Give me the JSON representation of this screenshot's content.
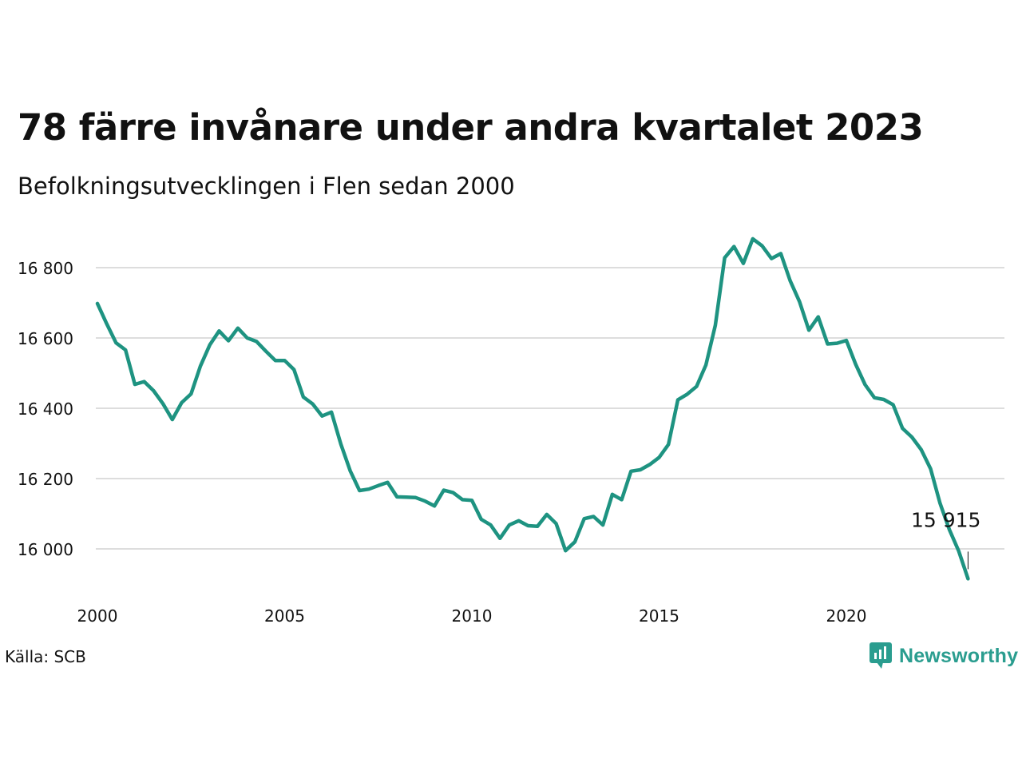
{
  "title": "78 färre invånare under andra kvartalet 2023",
  "subtitle": "Befolkningsutvecklingen i Flen sedan 2000",
  "source": "Källa: SCB",
  "brand": {
    "name": "Newsworthy",
    "icon": "newsworthy-logo-icon",
    "color": "#2a9d8f"
  },
  "chart_data": {
    "type": "line",
    "title": "78 färre invånare under andra kvartalet 2023",
    "subtitle": "Befolkningsutvecklingen i Flen sedan 2000",
    "xlabel": "",
    "ylabel": "",
    "xlim": [
      2000,
      2023.5
    ],
    "ylim": [
      15900,
      16950
    ],
    "grid": "horizontal",
    "line_color": "#1e9381",
    "x_ticks": [
      2000,
      2005,
      2010,
      2015,
      2020
    ],
    "x_tick_labels": [
      "2000",
      "2005",
      "2010",
      "2015",
      "2020"
    ],
    "y_ticks": [
      16000,
      16200,
      16400,
      16600,
      16800
    ],
    "y_tick_labels": [
      "16 000",
      "16 200",
      "16 400",
      "16 600",
      "16 800"
    ],
    "series": [
      {
        "x": [
          2000.0,
          2000.25,
          2000.5,
          2000.75,
          2001.0,
          2001.25,
          2001.5,
          2001.75,
          2002.0,
          2002.25,
          2002.5,
          2002.75,
          2003.0,
          2003.25,
          2003.5,
          2003.75,
          2004.0,
          2004.25,
          2004.5,
          2004.75,
          2005.0,
          2005.25,
          2005.5,
          2005.75,
          2006.0,
          2006.25,
          2006.5,
          2006.75,
          2007.0,
          2007.25,
          2007.5,
          2007.75,
          2008.0,
          2008.25,
          2008.5,
          2008.75,
          2009.0,
          2009.25,
          2009.5,
          2009.75,
          2010.0,
          2010.25,
          2010.5,
          2010.75,
          2011.0,
          2011.25,
          2011.5,
          2011.75,
          2012.0,
          2012.25,
          2012.5,
          2012.75,
          2013.0,
          2013.25,
          2013.5,
          2013.75,
          2014.0,
          2014.25,
          2014.5,
          2014.75,
          2015.0,
          2015.25,
          2015.5,
          2015.75,
          2016.0,
          2016.25,
          2016.5,
          2016.75,
          2017.0,
          2017.25,
          2017.5,
          2017.75,
          2018.0,
          2018.25,
          2018.5,
          2018.75,
          2019.0,
          2019.25,
          2019.5,
          2019.75,
          2020.0,
          2020.25,
          2020.5,
          2020.75,
          2021.0,
          2021.25,
          2021.5,
          2021.75,
          2022.0,
          2022.25,
          2022.5,
          2022.75,
          2023.0,
          2023.25
        ],
        "values": [
          16698,
          16640,
          16586,
          16566,
          16468,
          16476,
          16450,
          16413,
          16368,
          16416,
          16441,
          16520,
          16580,
          16620,
          16592,
          16628,
          16600,
          16590,
          16562,
          16536,
          16536,
          16510,
          16432,
          16412,
          16378,
          16389,
          16298,
          16222,
          16166,
          16170,
          16180,
          16189,
          16148,
          16147,
          16146,
          16136,
          16122,
          16167,
          16160,
          16140,
          16138,
          16084,
          16068,
          16030,
          16068,
          16080,
          16066,
          16064,
          16098,
          16072,
          15995,
          16020,
          16086,
          16092,
          16068,
          16155,
          16140,
          16221,
          16225,
          16240,
          16260,
          16297,
          16424,
          16440,
          16462,
          16523,
          16636,
          16828,
          16860,
          16812,
          16882,
          16862,
          16826,
          16840,
          16763,
          16703,
          16622,
          16660,
          16583,
          16585,
          16593,
          16525,
          16467,
          16430,
          16425,
          16410,
          16343,
          16318,
          16282,
          16228,
          16130,
          16055,
          15994,
          15915
        ]
      }
    ],
    "annotations": [
      {
        "x": 2023.25,
        "y": 15915,
        "text": "15 915"
      }
    ]
  }
}
